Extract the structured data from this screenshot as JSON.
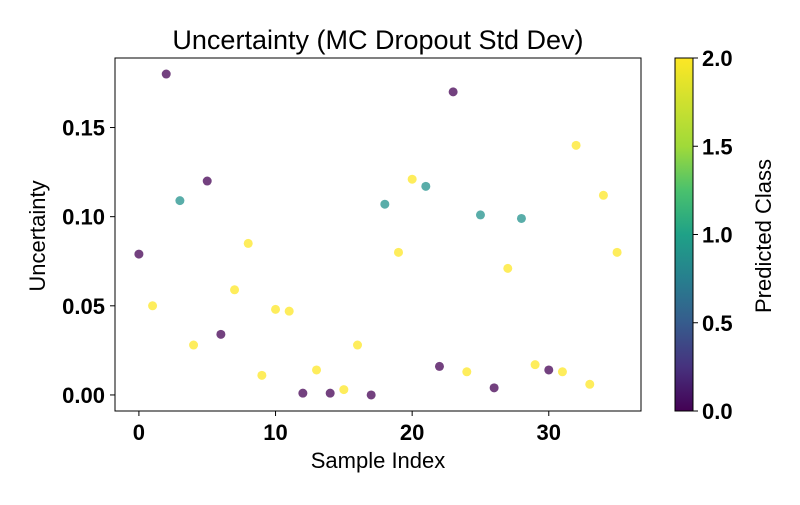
{
  "chart_data": {
    "type": "scatter",
    "title": "Uncertainty (MC Dropout Std Dev)",
    "xlabel": "Sample Index",
    "ylabel": "Uncertainty",
    "xlim": [
      -1.75,
      36.75
    ],
    "ylim": [
      -0.009,
      0.189
    ],
    "xticks": [
      0,
      10,
      20,
      30
    ],
    "yticks": [
      0.0,
      0.05,
      0.1,
      0.15
    ],
    "ytick_labels": [
      "0.00",
      "0.05",
      "0.10",
      "0.15"
    ],
    "grid": false,
    "colorbar": {
      "label": "Predicted Class",
      "colormap": "viridis",
      "range": [
        0.0,
        2.0
      ],
      "ticks": [
        0.0,
        0.5,
        1.0,
        1.5,
        2.0
      ],
      "tick_labels": [
        "0.0",
        "0.5",
        "1.0",
        "1.5",
        "2.0"
      ]
    },
    "colors": {
      "class_0": "#440154",
      "class_1": "#21918c",
      "class_2": "#fde725"
    },
    "x": [
      0,
      1,
      2,
      3,
      4,
      5,
      6,
      7,
      8,
      9,
      10,
      11,
      12,
      13,
      14,
      15,
      16,
      17,
      18,
      19,
      20,
      21,
      22,
      23,
      24,
      25,
      26,
      27,
      28,
      29,
      30,
      31,
      32,
      33,
      34,
      35
    ],
    "y": [
      0.079,
      0.05,
      0.18,
      0.109,
      0.028,
      0.12,
      0.034,
      0.059,
      0.085,
      0.011,
      0.048,
      0.047,
      0.001,
      0.014,
      0.001,
      0.003,
      0.028,
      0.0,
      0.107,
      0.08,
      0.121,
      0.117,
      0.016,
      0.17,
      0.013,
      0.101,
      0.004,
      0.071,
      0.099,
      0.017,
      0.014,
      0.013,
      0.14,
      0.006,
      0.112,
      0.08
    ],
    "predicted_class": [
      0,
      2,
      0,
      1,
      2,
      0,
      0,
      2,
      2,
      2,
      2,
      2,
      0,
      2,
      0,
      2,
      2,
      0,
      1,
      2,
      2,
      1,
      0,
      0,
      2,
      1,
      0,
      2,
      1,
      2,
      0,
      2,
      2,
      2,
      2,
      2
    ]
  }
}
